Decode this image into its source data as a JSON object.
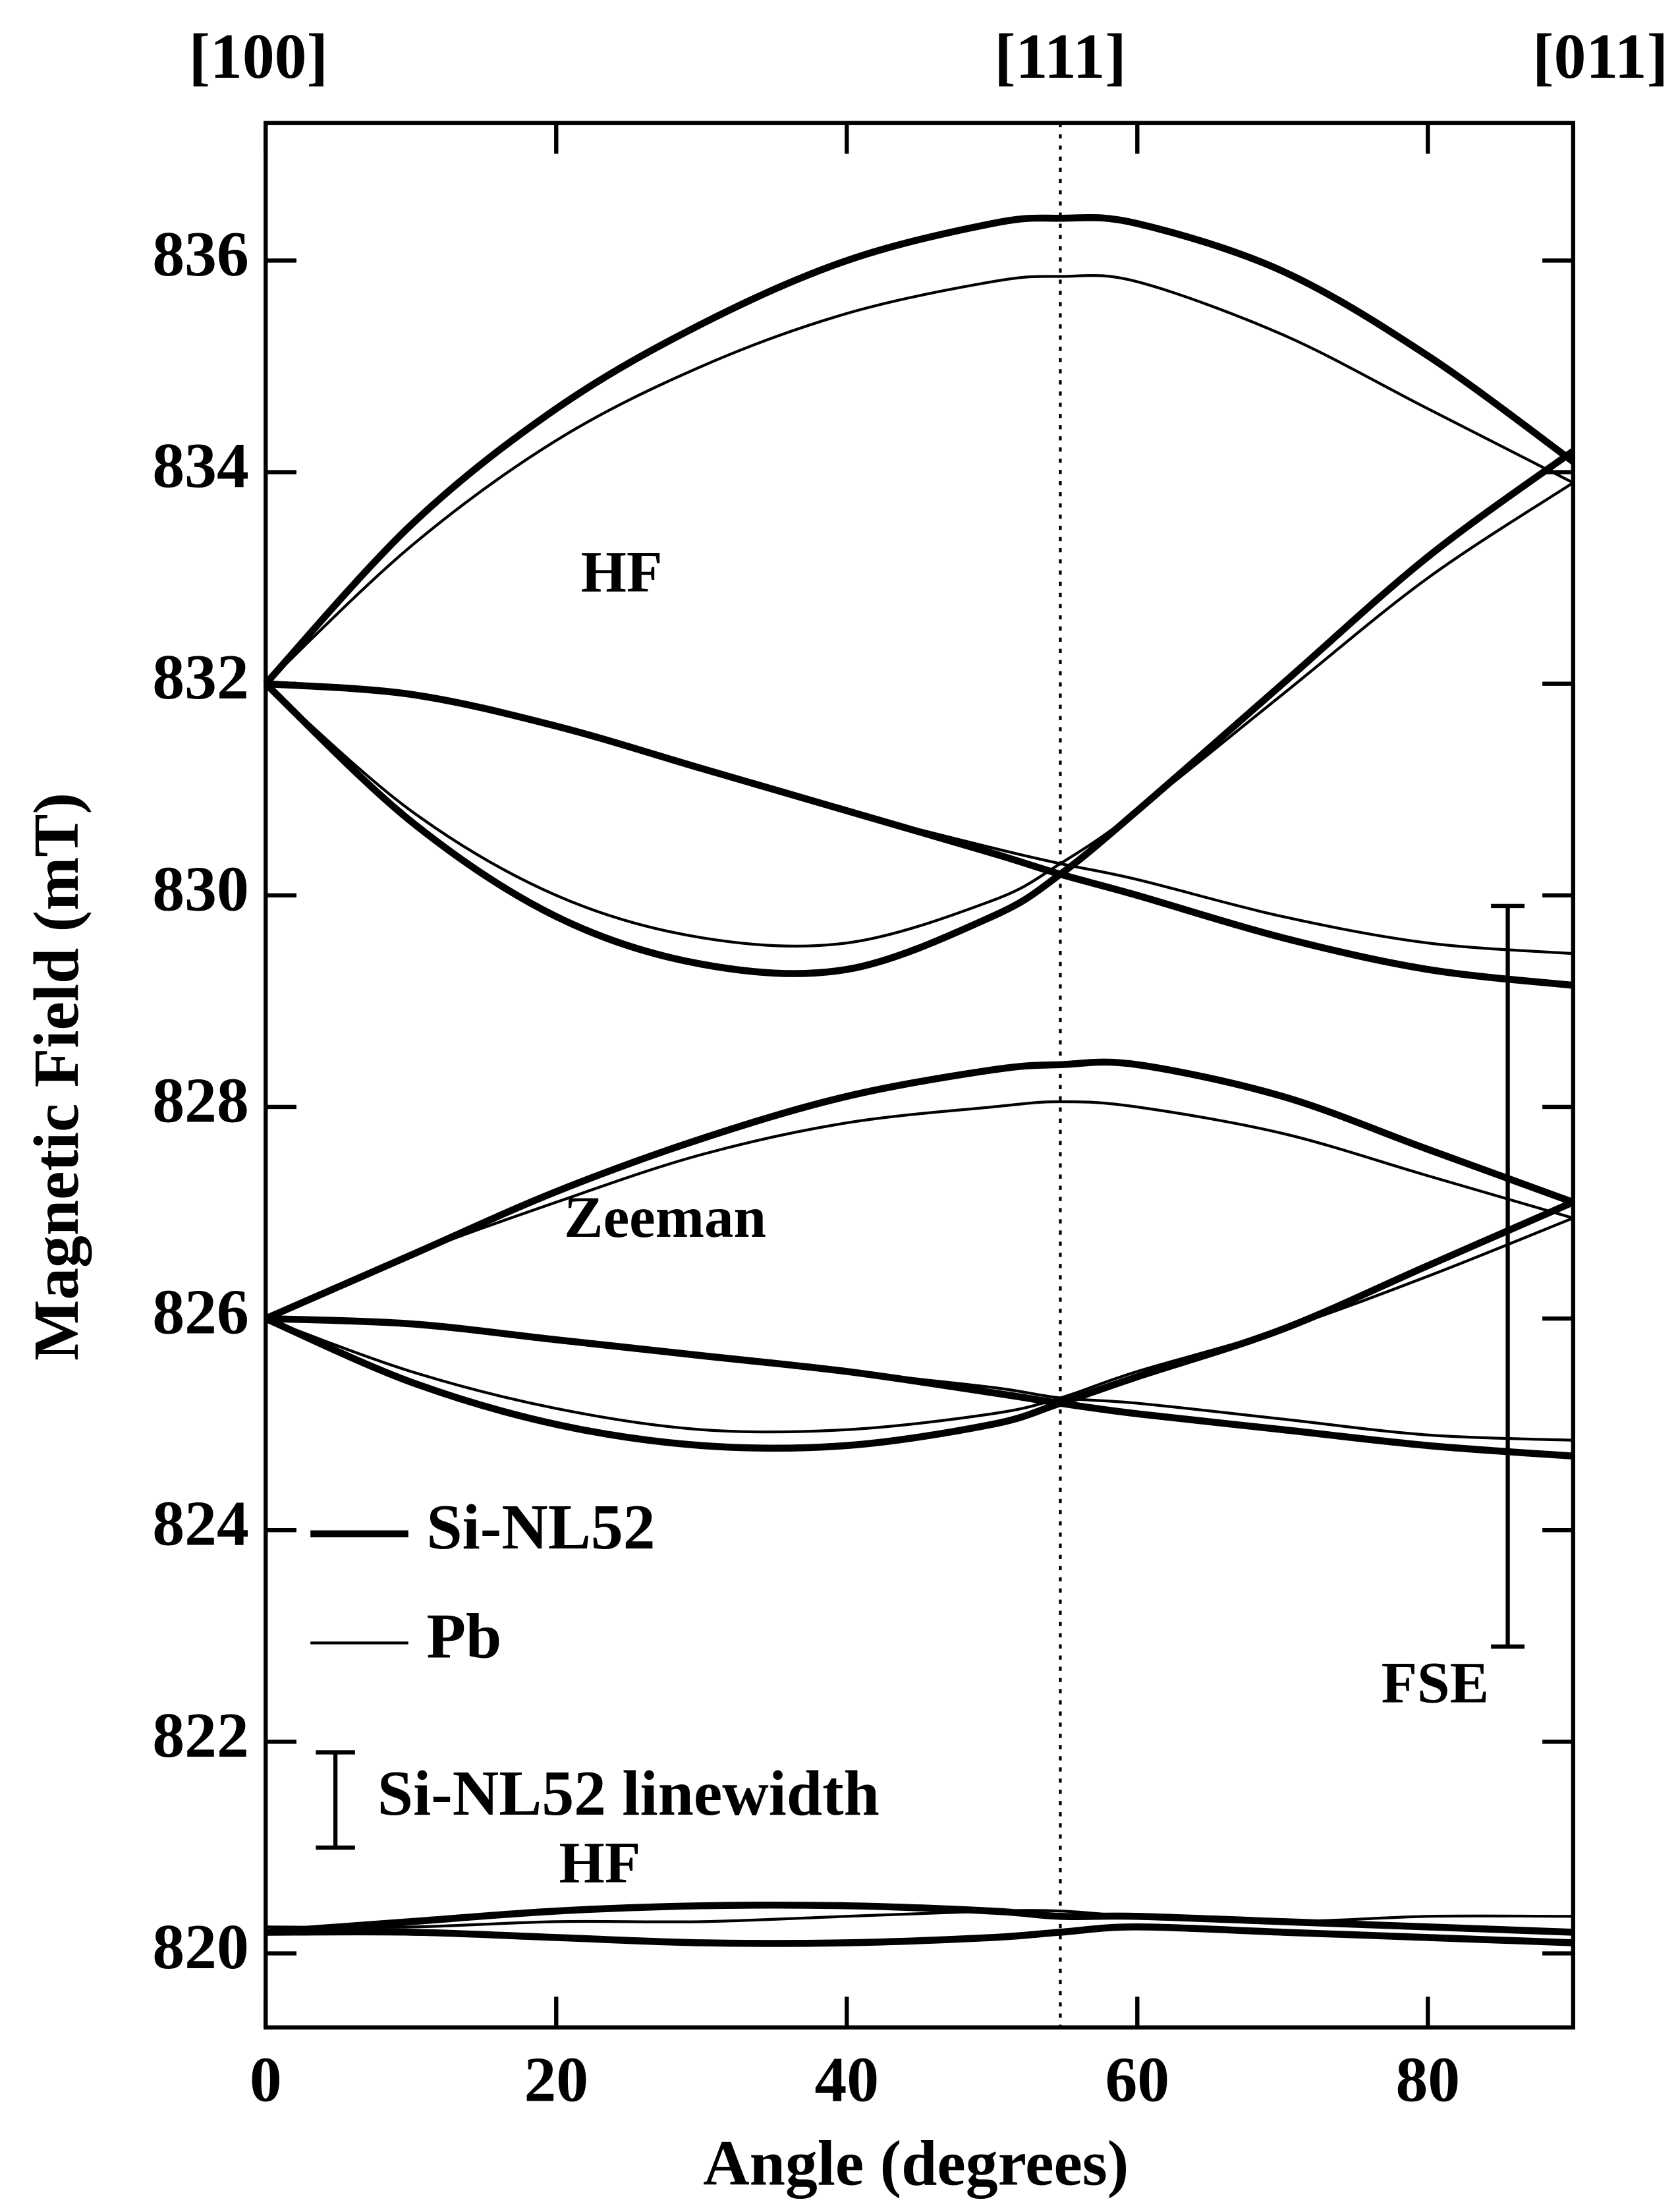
{
  "chart_data": {
    "type": "line",
    "xlabel": "Angle (degrees)",
    "ylabel": "Magnetic Field (mT)",
    "xlim": [
      0,
      90
    ],
    "ylim": [
      819.3,
      837.3
    ],
    "xticks": [
      0,
      20,
      40,
      60,
      80
    ],
    "yticks": [
      820,
      822,
      824,
      826,
      828,
      830,
      832,
      834,
      836
    ],
    "top_labels": [
      {
        "value": 0,
        "label": "[100]"
      },
      {
        "value": 54.7,
        "label": "[111]"
      },
      {
        "value": 90,
        "label": "[011]"
      }
    ],
    "x": [
      0,
      10,
      20,
      30,
      40,
      50,
      54.7,
      60,
      70,
      80,
      90
    ],
    "series": [
      {
        "name": "Si-NL52",
        "color": "#000000",
        "line_width": 5,
        "values": [
          832,
          833.5,
          834.6,
          835.4,
          836.0,
          836.35,
          836.4,
          836.35,
          835.9,
          835.1,
          834.1
        ]
      },
      {
        "name": "Pb",
        "color": "#000000",
        "line_width": 2,
        "values": [
          832,
          833.3,
          834.3,
          835.0,
          835.5,
          835.8,
          835.85,
          835.8,
          835.3,
          834.6,
          833.9
        ]
      },
      {
        "color": "#000000",
        "line_width": 5,
        "values": [
          832,
          831.9,
          831.6,
          831.2,
          830.8,
          830.4,
          830.2,
          830.0,
          829.6,
          829.3,
          829.15
        ]
      },
      {
        "color": "#000000",
        "line_width": 2,
        "values": [
          832,
          831.9,
          831.6,
          831.2,
          830.8,
          830.45,
          830.3,
          830.15,
          829.8,
          829.55,
          829.45
        ]
      },
      {
        "color": "#000000",
        "line_width": 5,
        "values": [
          832,
          830.7,
          829.8,
          829.35,
          829.3,
          829.8,
          830.2,
          830.8,
          832.0,
          833.2,
          834.2
        ]
      },
      {
        "color": "#000000",
        "line_width": 2,
        "values": [
          832,
          830.8,
          830.0,
          829.6,
          829.55,
          829.95,
          830.3,
          830.8,
          831.9,
          833.0,
          833.9
        ]
      },
      {
        "color": "#000000",
        "line_width": 5,
        "values": [
          826,
          826.6,
          827.2,
          827.7,
          828.1,
          828.35,
          828.4,
          828.4,
          828.1,
          827.6,
          827.1
        ]
      },
      {
        "color": "#000000",
        "line_width": 2,
        "values": [
          826,
          826.6,
          827.1,
          827.55,
          827.85,
          828.0,
          828.05,
          828.0,
          827.75,
          827.35,
          826.95
        ]
      },
      {
        "color": "#000000",
        "line_width": 5,
        "values": [
          826,
          825.95,
          825.8,
          825.65,
          825.5,
          825.3,
          825.2,
          825.1,
          824.95,
          824.8,
          824.7
        ]
      },
      {
        "color": "#000000",
        "line_width": 2,
        "values": [
          826,
          825.95,
          825.8,
          825.65,
          825.5,
          825.35,
          825.25,
          825.2,
          825.05,
          824.9,
          824.85
        ]
      },
      {
        "color": "#000000",
        "line_width": 5,
        "values": [
          826,
          825.4,
          825.0,
          824.8,
          824.8,
          825.0,
          825.2,
          825.45,
          825.9,
          826.5,
          827.1
        ]
      },
      {
        "color": "#000000",
        "line_width": 2,
        "values": [
          826,
          825.5,
          825.15,
          824.95,
          824.95,
          825.1,
          825.25,
          825.5,
          825.9,
          826.4,
          826.95
        ]
      },
      {
        "color": "#000000",
        "line_width": 5,
        "values": [
          820.2,
          820.3,
          820.4,
          820.45,
          820.45,
          820.4,
          820.35,
          820.35,
          820.3,
          820.25,
          820.2
        ]
      },
      {
        "color": "#000000",
        "line_width": 5,
        "values": [
          820.2,
          820.2,
          820.15,
          820.1,
          820.1,
          820.15,
          820.2,
          820.25,
          820.2,
          820.15,
          820.1
        ]
      },
      {
        "color": "#000000",
        "line_width": 2,
        "values": [
          820.25,
          820.25,
          820.3,
          820.3,
          820.35,
          820.4,
          820.4,
          820.35,
          820.3,
          820.35,
          820.35
        ]
      }
    ],
    "annotations": [
      "HF",
      "Zeeman",
      "HF",
      "FSE"
    ],
    "fse_bar": {
      "x": 85.5,
      "low": 822.9,
      "high": 829.9
    },
    "linewidth_bar": {
      "label": "Si-NL52 linewidth",
      "x": 4.8,
      "low": 821.0,
      "high": 821.9
    }
  }
}
